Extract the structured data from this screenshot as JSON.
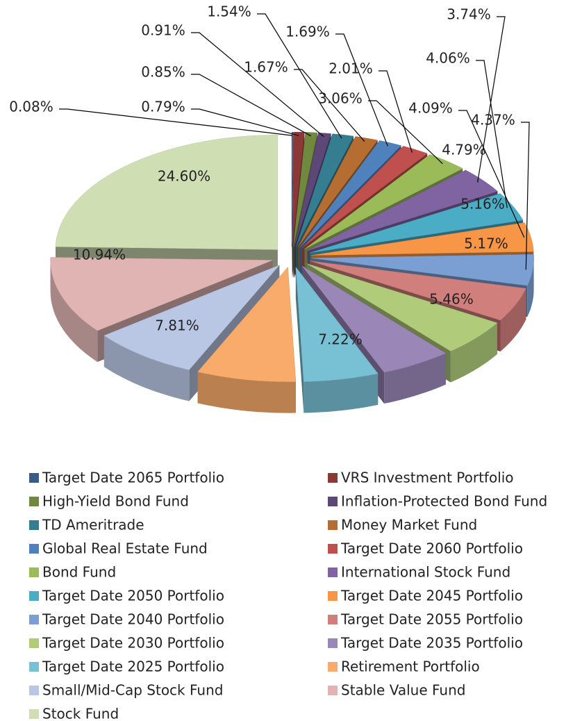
{
  "chart_data": {
    "type": "pie",
    "categories": [
      "Target Date 2065 Portfolio",
      "VRS Investment Portfolio",
      "High-Yield Bond Fund",
      "Inflation-Protected Bond Fund",
      "TD Ameritrade",
      "Money Market Fund",
      "Global Real Estate Fund",
      "Target Date 2060 Portfolio",
      "Bond Fund",
      "International Stock Fund",
      "Target Date 2050 Portfolio",
      "Target Date 2045 Portfolio",
      "Target Date 2040 Portfolio",
      "Target Date 2055 Portfolio",
      "Target Date 2030 Portfolio",
      "Target Date 2035 Portfolio",
      "Target Date 2025 Portfolio",
      "Retirement Portfolio",
      "Small/Mid-Cap Stock Fund",
      "Stable Value Fund",
      "Stock Fund"
    ],
    "values": [
      0.08,
      0.79,
      0.85,
      0.91,
      1.54,
      1.67,
      1.69,
      2.01,
      3.06,
      3.74,
      4.06,
      4.09,
      4.37,
      4.79,
      5.16,
      5.17,
      5.46,
      7.22,
      7.81,
      10.94,
      24.6
    ],
    "value_labels": [
      "0.08%",
      "0.79%",
      "0.85%",
      "0.91%",
      "1.54%",
      "1.67%",
      "1.69%",
      "2.01%",
      "3.06%",
      "3.74%",
      "4.06%",
      "4.09%",
      "4.37%",
      "4.79%",
      "5.16%",
      "5.17%",
      "5.46%",
      "7.22%",
      "7.81%",
      "10.94%",
      "24.60%"
    ],
    "colors": [
      "#385d8a",
      "#8c3836",
      "#71893f",
      "#5c4776",
      "#357d91",
      "#b66d31",
      "#4f81bd",
      "#c0504d",
      "#9bbb59",
      "#8064a2",
      "#4bacc6",
      "#f79646",
      "#7b9fd2",
      "#d07f7c",
      "#b0cc7a",
      "#9b86b8",
      "#78c0d4",
      "#f9ab6b",
      "#b9c7e4",
      "#dfb4b3",
      "#d0deb4"
    ],
    "legend": "bottom"
  }
}
